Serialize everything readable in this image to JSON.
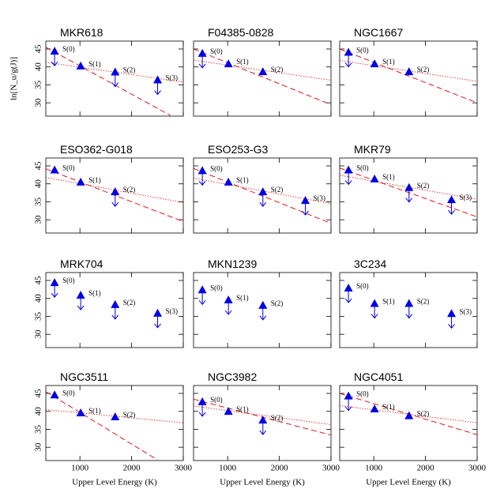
{
  "chart_data": [
    {
      "type": "scatter",
      "title": "MKR618",
      "x": [
        510,
        1015,
        1682,
        2504
      ],
      "values": [
        44.3,
        40.2,
        38.5,
        36.3
      ],
      "labels": [
        "S(0)",
        "S(1)",
        "S(2)",
        "S(3)"
      ],
      "upper_limit": [
        true,
        false,
        true,
        true
      ],
      "color": "#0000e6",
      "ylabel": "ln[N_u/g(J)]",
      "xlim": [
        340,
        3000
      ],
      "ylim": [
        26.3,
        47.2
      ],
      "yticks": [
        30,
        35,
        40,
        45
      ],
      "fits": [
        {
          "style": "dotted",
          "color": "#e00000",
          "x": [
            340,
            3000
          ],
          "values": [
            41.3,
            35.8
          ]
        },
        {
          "style": "dashed",
          "color": "#e00000",
          "x": [
            340,
            2750
          ],
          "values": [
            45.5,
            26.5
          ]
        }
      ]
    },
    {
      "type": "scatter",
      "title": "F04385-0828",
      "x": [
        510,
        1015,
        1682
      ],
      "values": [
        43.7,
        40.8,
        38.6
      ],
      "labels": [
        "S(0)",
        "S(1)",
        "S(2)"
      ],
      "upper_limit": [
        true,
        false,
        false
      ],
      "color": "#0000e6",
      "xlim": [
        340,
        3000
      ],
      "ylim": [
        26.3,
        47.2
      ],
      "fits": [
        {
          "style": "dotted",
          "color": "#e00000",
          "x": [
            340,
            3000
          ],
          "values": [
            41.9,
            36.3
          ]
        },
        {
          "style": "dashed",
          "color": "#e00000",
          "x": [
            340,
            3000
          ],
          "values": [
            45,
            29.5
          ]
        }
      ]
    },
    {
      "type": "scatter",
      "title": "NGC1667",
      "x": [
        510,
        1015,
        1682
      ],
      "values": [
        44.0,
        40.8,
        38.6
      ],
      "labels": [
        "S(0)",
        "S(1)",
        "S(2)"
      ],
      "upper_limit": [
        true,
        false,
        false
      ],
      "color": "#0000e6",
      "xlim": [
        340,
        3000
      ],
      "ylim": [
        26.3,
        47.2
      ],
      "fits": [
        {
          "style": "dotted",
          "color": "#e00000",
          "x": [
            340,
            3000
          ],
          "values": [
            41.8,
            36
          ]
        },
        {
          "style": "dashed",
          "color": "#e00000",
          "x": [
            340,
            3000
          ],
          "values": [
            45,
            30
          ]
        }
      ]
    },
    {
      "type": "scatter",
      "title": "ESO362-G018",
      "x": [
        510,
        1015,
        1682
      ],
      "values": [
        43.8,
        40.4,
        37.7
      ],
      "labels": [
        "S(0)",
        "S(1)",
        "S(2)"
      ],
      "upper_limit": [
        false,
        false,
        true
      ],
      "color": "#0000e6",
      "xlim": [
        340,
        3000
      ],
      "ylim": [
        26.3,
        47.2
      ],
      "yticks": [
        30,
        35,
        40,
        45
      ],
      "fits": [
        {
          "style": "dotted",
          "color": "#e00000",
          "x": [
            340,
            3000
          ],
          "values": [
            41.8,
            34.8
          ]
        },
        {
          "style": "dashed",
          "color": "#e00000",
          "x": [
            340,
            3000
          ],
          "values": [
            44.2,
            29.5
          ]
        }
      ]
    },
    {
      "type": "scatter",
      "title": "ESO253-G3",
      "x": [
        510,
        1015,
        1682,
        2504
      ],
      "values": [
        43.6,
        40.4,
        37.7,
        35.3
      ],
      "labels": [
        "S(0)",
        "S(1)",
        "S(2)",
        "S(3)"
      ],
      "upper_limit": [
        true,
        false,
        true,
        true
      ],
      "color": "#0000e6",
      "xlim": [
        340,
        3000
      ],
      "ylim": [
        26.3,
        47.2
      ],
      "fits": [
        {
          "style": "dotted",
          "color": "#e00000",
          "x": [
            340,
            3000
          ],
          "values": [
            41.6,
            34.5
          ]
        },
        {
          "style": "dashed",
          "color": "#e00000",
          "x": [
            340,
            3000
          ],
          "values": [
            44.3,
            29
          ]
        }
      ]
    },
    {
      "type": "scatter",
      "title": "MKR79",
      "x": [
        510,
        1015,
        1682,
        2504
      ],
      "values": [
        43.8,
        41.3,
        38.9,
        35.5
      ],
      "labels": [
        "S(0)",
        "S(1)",
        "S(2)",
        "S(3)"
      ],
      "upper_limit": [
        true,
        false,
        true,
        true
      ],
      "color": "#0000e6",
      "xlim": [
        340,
        3000
      ],
      "ylim": [
        26.3,
        47.2
      ],
      "fits": [
        {
          "style": "dotted",
          "color": "#e00000",
          "x": [
            340,
            3000
          ],
          "values": [
            42.4,
            35.7
          ]
        },
        {
          "style": "dashed",
          "color": "#e00000",
          "x": [
            340,
            3000
          ],
          "values": [
            44.4,
            30.8
          ]
        }
      ]
    },
    {
      "type": "scatter",
      "title": "MRK704",
      "x": [
        510,
        1015,
        1682,
        2504
      ],
      "values": [
        44.3,
        40.8,
        38.2,
        35.8
      ],
      "labels": [
        "S(0)",
        "S(1)",
        "S(2)",
        "S(3)"
      ],
      "upper_limit": [
        true,
        true,
        true,
        true
      ],
      "color": "#0000e6",
      "xlim": [
        340,
        3000
      ],
      "ylim": [
        26.3,
        47.2
      ],
      "yticks": [
        30,
        35,
        40,
        45
      ],
      "fits": []
    },
    {
      "type": "scatter",
      "title": "MKN1239",
      "x": [
        510,
        1015,
        1682
      ],
      "values": [
        42.3,
        39.5,
        38.0
      ],
      "labels": [
        "S(0)",
        "S(1)",
        "S(2)"
      ],
      "upper_limit": [
        true,
        true,
        true
      ],
      "color": "#0000e6",
      "xlim": [
        340,
        3000
      ],
      "ylim": [
        26.3,
        47.2
      ],
      "fits": []
    },
    {
      "type": "scatter",
      "title": "3C234",
      "x": [
        510,
        1015,
        1682,
        2504
      ],
      "values": [
        42.8,
        38.5,
        38.5,
        35.7
      ],
      "labels": [
        "S(0)",
        "S(1)",
        "S(2)",
        "S(3)"
      ],
      "upper_limit": [
        true,
        true,
        true,
        true
      ],
      "color": "#0000e6",
      "xlim": [
        340,
        3000
      ],
      "ylim": [
        26.3,
        47.2
      ],
      "fits": []
    },
    {
      "type": "scatter",
      "title": "NGC3511",
      "x": [
        510,
        1015,
        1682
      ],
      "values": [
        44.5,
        39.5,
        38.4
      ],
      "labels": [
        "S(0)",
        "S(1)",
        "S(2)"
      ],
      "upper_limit": [
        false,
        false,
        false
      ],
      "color": "#0000e6",
      "xlabel": "Upper Level Energy (K)",
      "xlim": [
        340,
        3000
      ],
      "ylim": [
        26.3,
        47.2
      ],
      "xticks": [
        1000,
        2000,
        3000
      ],
      "yticks": [
        30,
        35,
        40,
        45
      ],
      "fits": [
        {
          "style": "dotted",
          "color": "#e00000",
          "x": [
            340,
            3000
          ],
          "values": [
            40.5,
            36.8
          ]
        },
        {
          "style": "dashed",
          "color": "#e00000",
          "x": [
            340,
            2500
          ],
          "values": [
            45.5,
            26.5
          ]
        }
      ]
    },
    {
      "type": "scatter",
      "title": "NGC3982",
      "x": [
        510,
        1015,
        1682
      ],
      "values": [
        42.6,
        39.9,
        37.5
      ],
      "labels": [
        "S(0)",
        "S(1)",
        "S(2)"
      ],
      "upper_limit": [
        true,
        false,
        true
      ],
      "color": "#0000e6",
      "xlabel": "Upper Level Energy (K)",
      "xlim": [
        340,
        3000
      ],
      "ylim": [
        26.3,
        47.2
      ],
      "xticks": [
        1000,
        2000,
        3000
      ],
      "fits": [
        {
          "style": "dotted",
          "color": "#e00000",
          "x": [
            340,
            3000
          ],
          "values": [
            41.5,
            36.3
          ]
        },
        {
          "style": "dashed",
          "color": "#e00000",
          "x": [
            340,
            3000
          ],
          "values": [
            43.4,
            33.4
          ]
        }
      ]
    },
    {
      "type": "scatter",
      "title": "NGC4051",
      "x": [
        510,
        1015,
        1682
      ],
      "values": [
        44.2,
        40.6,
        38.7
      ],
      "labels": [
        "S(0)",
        "S(1)",
        "S(2)"
      ],
      "upper_limit": [
        true,
        false,
        false
      ],
      "color": "#0000e6",
      "xlabel": "Upper Level Energy (K)",
      "xlim": [
        340,
        3000
      ],
      "ylim": [
        26.3,
        47.2
      ],
      "xticks": [
        1000,
        2000,
        3000
      ],
      "fits": [
        {
          "style": "dotted",
          "color": "#e00000",
          "x": [
            340,
            3000
          ],
          "values": [
            41.6,
            36.8
          ]
        },
        {
          "style": "dashed",
          "color": "#e00000",
          "x": [
            340,
            3000
          ],
          "values": [
            45,
            33.5
          ]
        }
      ]
    }
  ]
}
